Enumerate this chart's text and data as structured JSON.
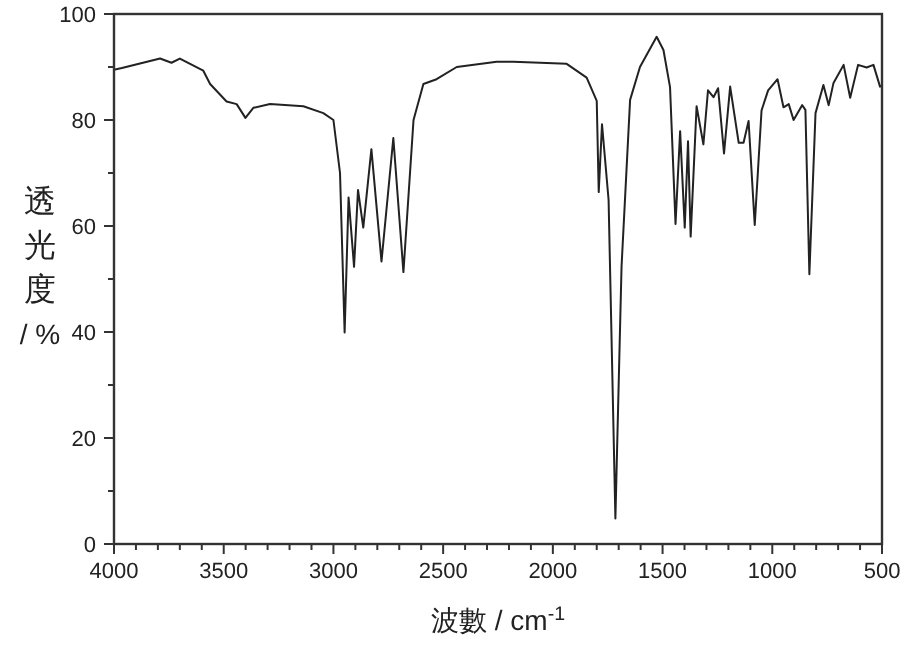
{
  "chart_data": {
    "type": "line",
    "xlabel": "波數 / cm$^{-1}$",
    "ylabel": "透光度 / %",
    "xlim": [
      4000,
      500
    ],
    "ylim": [
      0,
      100
    ],
    "xticks": [
      4000,
      {
        "value": 3900,
        "label": null
      },
      {
        "value": 3800,
        "label": null
      },
      {
        "value": 3700,
        "label": null
      },
      {
        "value": 3600,
        "label": null
      },
      3500,
      {
        "value": 3400,
        "label": null
      },
      {
        "value": 3300,
        "label": null
      },
      {
        "value": 3200,
        "label": null
      },
      {
        "value": 3100,
        "label": null
      },
      3000,
      {
        "value": 2900,
        "label": null
      },
      {
        "value": 2800,
        "label": null
      },
      {
        "value": 2700,
        "label": null
      },
      {
        "value": 2600,
        "label": null
      },
      2500,
      {
        "value": 2400,
        "label": null
      },
      {
        "value": 2300,
        "label": null
      },
      {
        "value": 2200,
        "label": null
      },
      {
        "value": 2100,
        "label": null
      },
      2000,
      {
        "value": 1900,
        "label": null
      },
      {
        "value": 1800,
        "label": null
      },
      {
        "value": 1700,
        "label": null
      },
      {
        "value": 1600,
        "label": null
      },
      1500,
      {
        "value": 1400,
        "label": null
      },
      {
        "value": 1300,
        "label": null
      },
      {
        "value": 1200,
        "label": null
      },
      {
        "value": 1100,
        "label": null
      },
      1000,
      {
        "value": 900,
        "label": null
      },
      {
        "value": 800,
        "label": null
      },
      {
        "value": 700,
        "label": null
      },
      {
        "value": 600,
        "label": null
      },
      500
    ],
    "yticks": [
      0,
      {
        "value": 10,
        "label": null
      },
      20,
      {
        "value": 30,
        "label": null
      },
      40,
      {
        "value": 50,
        "label": null
      },
      60,
      {
        "value": 70,
        "label": null
      },
      80,
      {
        "value": 90,
        "label": null
      },
      100
    ],
    "grid": false,
    "marker": "none",
    "line_style": "solid",
    "series": [
      {
        "color": "#222222",
        "x": [
          4000,
          3964,
          3790,
          3738,
          3700,
          3593,
          3562,
          3487,
          3441,
          3401,
          3365,
          3289,
          3137,
          3046,
          3000,
          2970,
          2949,
          2931,
          2906,
          2888,
          2864,
          2827,
          2781,
          2727,
          2681,
          2635,
          2590,
          2530,
          2438,
          2256,
          2180,
          1937,
          1846,
          1800,
          1791,
          1776,
          1746,
          1715,
          1687,
          1648,
          1603,
          1527,
          1496,
          1466,
          1441,
          1420,
          1399,
          1384,
          1372,
          1345,
          1314,
          1293,
          1268,
          1247,
          1220,
          1192,
          1153,
          1131,
          1108,
          1080,
          1049,
          1019,
          976,
          949,
          925,
          903,
          864,
          849,
          831,
          803,
          767,
          743,
          721,
          675,
          645,
          609,
          570,
          539,
          509,
          500
        ],
        "values": [
          89.5,
          89.8,
          91.6,
          90.8,
          91.6,
          89.3,
          86.8,
          83.5,
          83,
          80.4,
          82.3,
          83,
          82.6,
          81.3,
          80,
          70,
          39.9,
          65.4,
          52.3,
          66.8,
          59.7,
          74.5,
          53.3,
          76.6,
          51.3,
          80,
          86.8,
          87.7,
          90,
          91,
          91,
          90.6,
          88,
          83.6,
          66.4,
          79.2,
          64.9,
          4.8,
          52.3,
          83.8,
          90,
          95.7,
          93.2,
          86.2,
          60.4,
          77.9,
          59.7,
          76,
          58,
          82.6,
          75.4,
          85.6,
          84.3,
          86,
          73.7,
          86.3,
          75.7,
          75.7,
          79.8,
          60.2,
          81.8,
          85.6,
          87.7,
          82.4,
          83,
          80,
          82.8,
          81.9,
          50.9,
          81.3,
          86.6,
          82.8,
          87,
          90.4,
          84.2,
          90.4,
          89.9,
          90.4,
          86.3,
          86.5
        ]
      }
    ]
  }
}
